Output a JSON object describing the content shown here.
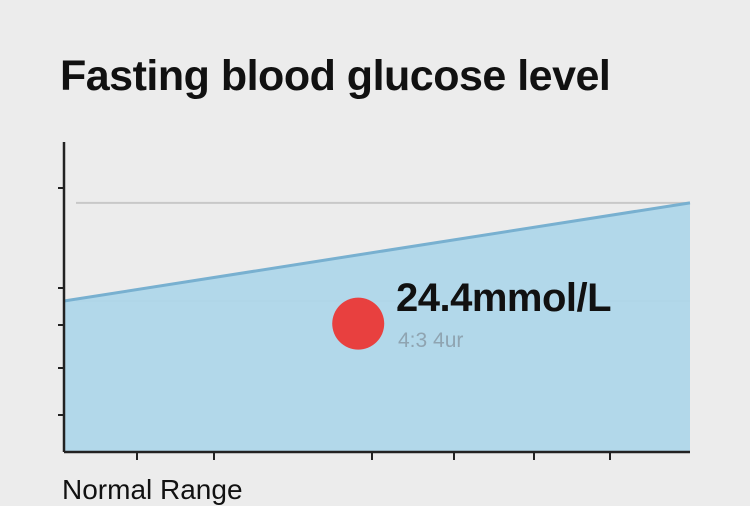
{
  "chart_data": {
    "type": "area",
    "title": "Fasting blood glucose level",
    "x": [
      0,
      1
    ],
    "series": [
      {
        "values": [
          20.0,
          33.0
        ]
      }
    ],
    "ylim": [
      0,
      40
    ],
    "gridlines": [
      20,
      33
    ],
    "grid": true,
    "highlight": {
      "x": 0.47,
      "y": 17.0,
      "value_label": "24.4mmol/L",
      "time_label": "4:3 4ur",
      "color": "#e8403f"
    },
    "xaxis_label": "Normal Range",
    "colors": {
      "area_fill": "#afd7ea",
      "area_line": "#78b0d0",
      "axis": "#222222",
      "grid": "#c8c8c8"
    }
  }
}
